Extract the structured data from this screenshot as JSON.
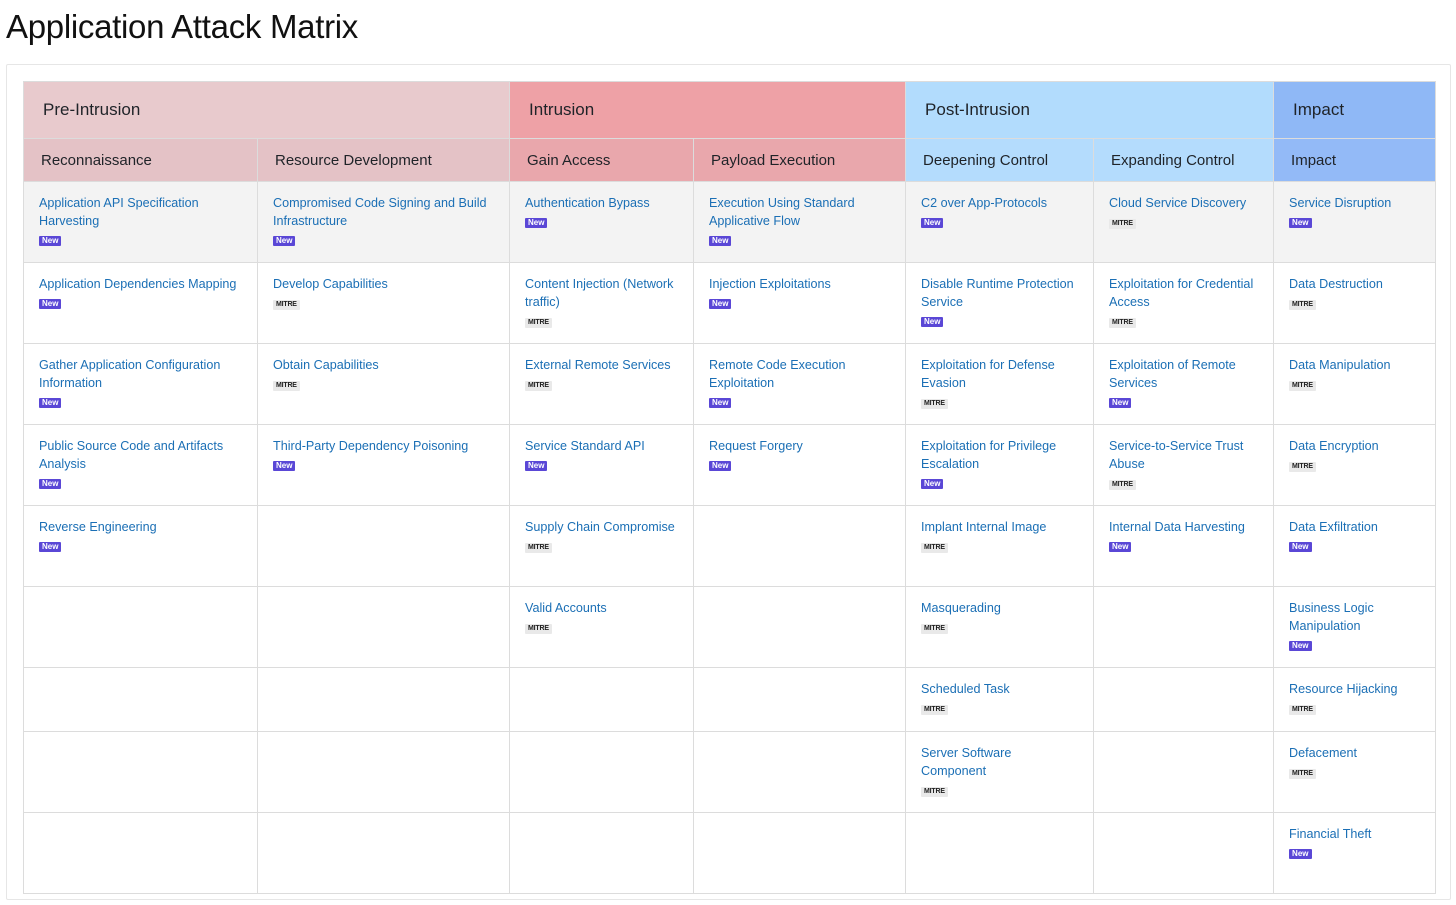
{
  "page": {
    "title": "Application Attack Matrix"
  },
  "phases": [
    {
      "label": "Pre-Intrusion",
      "span": 2,
      "color": "#e8cacd"
    },
    {
      "label": "Intrusion",
      "span": 2,
      "color": "#eea1a6"
    },
    {
      "label": "Post-Intrusion",
      "span": 2,
      "color": "#b2dcfd"
    },
    {
      "label": "Impact",
      "span": 1,
      "color": "#8fb8f6"
    }
  ],
  "badges": {
    "new": "New",
    "mitre": "MITRE"
  },
  "columns": [
    {
      "tactic": "Reconnaissance",
      "techniques": [
        {
          "name": "Application API Specification Harvesting",
          "badge": "New"
        },
        {
          "name": "Application Dependencies Mapping",
          "badge": "New"
        },
        {
          "name": "Gather Application Configuration Information",
          "badge": "New"
        },
        {
          "name": "Public Source Code and Artifacts Analysis",
          "badge": "New"
        },
        {
          "name": "Reverse Engineering",
          "badge": "New"
        }
      ]
    },
    {
      "tactic": "Resource Development",
      "techniques": [
        {
          "name": "Compromised Code Signing and Build Infrastructure",
          "badge": "New"
        },
        {
          "name": "Develop Capabilities",
          "badge": "MITRE"
        },
        {
          "name": "Obtain Capabilities",
          "badge": "MITRE"
        },
        {
          "name": "Third-Party Dependency Poisoning",
          "badge": "New"
        }
      ]
    },
    {
      "tactic": "Gain Access",
      "techniques": [
        {
          "name": "Authentication Bypass",
          "badge": "New"
        },
        {
          "name": "Content Injection (Network traffic)",
          "badge": "MITRE"
        },
        {
          "name": "External Remote Services",
          "badge": "MITRE"
        },
        {
          "name": "Service Standard API",
          "badge": "New"
        },
        {
          "name": "Supply Chain Compromise",
          "badge": "MITRE"
        },
        {
          "name": "Valid Accounts",
          "badge": "MITRE"
        }
      ]
    },
    {
      "tactic": "Payload Execution",
      "techniques": [
        {
          "name": "Execution Using Standard Applicative Flow",
          "badge": "New"
        },
        {
          "name": "Injection Exploitations",
          "badge": "New"
        },
        {
          "name": "Remote Code Execution Exploitation",
          "badge": "New"
        },
        {
          "name": "Request Forgery",
          "badge": "New"
        }
      ]
    },
    {
      "tactic": "Deepening Control",
      "techniques": [
        {
          "name": "C2 over App-Protocols",
          "badge": "New"
        },
        {
          "name": "Disable Runtime Protection Service",
          "badge": "New"
        },
        {
          "name": "Exploitation for Defense Evasion",
          "badge": "MITRE"
        },
        {
          "name": "Exploitation for Privilege Escalation",
          "badge": "New"
        },
        {
          "name": "Implant Internal Image",
          "badge": "MITRE"
        },
        {
          "name": "Masquerading",
          "badge": "MITRE"
        },
        {
          "name": "Scheduled Task",
          "badge": "MITRE"
        },
        {
          "name": "Server Software Component",
          "badge": "MITRE"
        }
      ]
    },
    {
      "tactic": "Expanding Control",
      "techniques": [
        {
          "name": "Cloud Service Discovery",
          "badge": "MITRE"
        },
        {
          "name": "Exploitation for Credential Access",
          "badge": "MITRE"
        },
        {
          "name": "Exploitation of Remote Services",
          "badge": "New"
        },
        {
          "name": "Service-to-Service Trust Abuse",
          "badge": "MITRE"
        },
        {
          "name": "Internal Data Harvesting",
          "badge": "New"
        }
      ]
    },
    {
      "tactic": "Impact",
      "techniques": [
        {
          "name": "Service Disruption",
          "badge": "New"
        },
        {
          "name": "Data Destruction",
          "badge": "MITRE"
        },
        {
          "name": "Data Manipulation",
          "badge": "MITRE"
        },
        {
          "name": "Data Encryption",
          "badge": "MITRE"
        },
        {
          "name": "Data Exfiltration",
          "badge": "New"
        },
        {
          "name": "Business Logic Manipulation",
          "badge": "New"
        },
        {
          "name": "Resource Hijacking",
          "badge": "MITRE"
        },
        {
          "name": "Defacement",
          "badge": "MITRE"
        },
        {
          "name": "Financial Theft",
          "badge": "New"
        }
      ]
    }
  ]
}
